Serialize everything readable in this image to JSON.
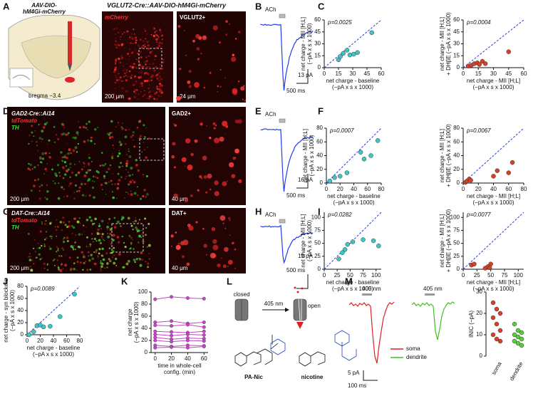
{
  "panels": {
    "A": {
      "label": "A",
      "vector": [
        "AAV-DIO-",
        "hM4Gi-mCherry"
      ],
      "title": "VGLUT2-Cre::AAV-DIO-hM4Gi-mCherry",
      "stain": "mCherry",
      "inset": "VGLUT2+",
      "bregma": "bregma −3.4",
      "scale1": "200 μm",
      "scale2": "24 μm"
    },
    "B": {
      "label": "B",
      "drug": "ACh",
      "scale_y": "13 pA",
      "scale_x": "500 ms"
    },
    "C": {
      "label": "C"
    },
    "D": {
      "label": "D",
      "title": "GAD2-Cre::Ai14",
      "stain1": "tdTomato",
      "stain2": "TH",
      "inset": "GAD2+",
      "scale1": "200 μm",
      "scale2": "40 μm"
    },
    "E": {
      "label": "E",
      "drug": "ACh",
      "scale_y": "16 pA",
      "scale_x": "500 ms"
    },
    "F": {
      "label": "F"
    },
    "G": {
      "label": "G",
      "title": "DAT-Cre::Ai14",
      "stain1": "tdTomato",
      "stain2": "TH",
      "inset": "DAT+",
      "scale1": "200 μm",
      "scale2": "40 μm"
    },
    "H": {
      "label": "H",
      "drug": "ACh",
      "scale_y": "19 pA",
      "scale_x": "500 ms"
    },
    "I": {
      "label": "I"
    },
    "J": {
      "label": "J"
    },
    "K": {
      "label": "K"
    },
    "L": {
      "label": "L",
      "closed": "closed",
      "light": "405 nm",
      "open": "open",
      "caged": "PA-Nic",
      "product": "nicotine"
    },
    "M": {
      "label": "M",
      "light1": "405 nm",
      "light2": "405 nm",
      "legend": [
        "soma",
        "dendrite"
      ],
      "scale_y": "5 pA",
      "scale_x": "100 ms"
    }
  },
  "chart_data": [
    {
      "type": "scatter",
      "x": [
        15,
        17,
        20,
        24,
        27,
        31,
        35,
        50
      ],
      "values": [
        10,
        14,
        18,
        22,
        16,
        17,
        19,
        44
      ],
      "color": "#3ec6c6",
      "xlim": [
        0,
        60
      ],
      "ylim": [
        0,
        60
      ],
      "xticks": [
        0,
        15,
        30,
        45,
        60
      ],
      "yticks": [
        0,
        15,
        30,
        45,
        60
      ],
      "xlabel": [
        "net charge - baseline",
        "(−pA x s x 1000)"
      ],
      "ylabel": [
        "net charge - MII [H;L]",
        "(−pA x s x 1000)"
      ],
      "annotation": "p=0.0025",
      "diagonal": true
    },
    {
      "type": "scatter",
      "x": [
        5,
        8,
        11,
        14,
        16,
        19,
        22,
        45
      ],
      "values": [
        2,
        3,
        5,
        6,
        4,
        8,
        5,
        20
      ],
      "color": "#d63f2a",
      "xlim": [
        0,
        60
      ],
      "ylim": [
        0,
        60
      ],
      "xticks": [
        0,
        15,
        30,
        45,
        60
      ],
      "yticks": [
        0,
        15,
        30,
        45,
        60
      ],
      "xlabel": [
        "net charge - MII [H;L]",
        "(−pA x s x 1000)"
      ],
      "ylabel": [
        "net charge - MII [H;L]",
        "+ DHβE (−pA x s x 1000)"
      ],
      "annotation": "p=0.0004",
      "diagonal": true
    },
    {
      "type": "scatter",
      "x": [
        5,
        12,
        20,
        30,
        50,
        55,
        65,
        75
      ],
      "values": [
        3,
        8,
        10,
        15,
        45,
        35,
        40,
        62
      ],
      "color": "#3ec6c6",
      "xlim": [
        0,
        80
      ],
      "ylim": [
        0,
        80
      ],
      "xticks": [
        0,
        20,
        40,
        60,
        80
      ],
      "yticks": [
        0,
        20,
        40,
        60,
        80
      ],
      "xlabel": [
        "net charge - baseline",
        "(−pA x s x 1000)"
      ],
      "ylabel": [
        "net charge - MII [H;L]",
        "(−pA x s x 1000)"
      ],
      "annotation": "p=0.0007",
      "diagonal": true
    },
    {
      "type": "scatter",
      "x": [
        3,
        5,
        8,
        10,
        40,
        45,
        60,
        65
      ],
      "values": [
        1,
        3,
        6,
        4,
        10,
        18,
        15,
        30
      ],
      "color": "#d63f2a",
      "xlim": [
        0,
        80
      ],
      "ylim": [
        0,
        80
      ],
      "xticks": [
        0,
        20,
        40,
        60,
        80
      ],
      "yticks": [
        0,
        20,
        40,
        60,
        80
      ],
      "xlabel": [
        "net charge - MII [H;L]",
        "(−pA x s x 1000)"
      ],
      "ylabel": [
        "net charge - MII [H;L]",
        "+ DHβE (−pA x s x 1000)"
      ],
      "annotation": "p=0.0067",
      "diagonal": true
    },
    {
      "type": "scatter",
      "x": [
        28,
        35,
        40,
        45,
        55,
        75,
        95,
        105
      ],
      "values": [
        20,
        32,
        38,
        48,
        53,
        57,
        55,
        45
      ],
      "color": "#3ec6c6",
      "xlim": [
        0,
        110
      ],
      "ylim": [
        0,
        110
      ],
      "xticks": [
        0,
        25,
        50,
        75,
        100
      ],
      "yticks": [
        0,
        25,
        50,
        75,
        100
      ],
      "xlabel": [
        "net charge - baseline",
        "(−pA x s x 1000)"
      ],
      "ylabel": [
        "net charge - MII [H;L]",
        "(−pA x s x 1000)"
      ],
      "annotation": "p=0.0282",
      "diagonal": true
    },
    {
      "type": "scatter",
      "x": [
        15,
        20,
        40,
        45,
        48,
        50
      ],
      "values": [
        8,
        10,
        2,
        5,
        3,
        10
      ],
      "color": "#d63f2a",
      "xlim": [
        0,
        110
      ],
      "ylim": [
        0,
        110
      ],
      "xticks": [
        0,
        25,
        50,
        75,
        100
      ],
      "yticks": [
        0,
        25,
        50,
        75,
        100
      ],
      "xlabel": [
        "net charge - MII [H;L]",
        "(−pA x s x 1000)"
      ],
      "ylabel": [
        "net charge - MII [H;L]",
        "+ DHβE (−pA x s x 1000)"
      ],
      "annotation": "p=0.0077",
      "diagonal": true
    },
    {
      "type": "scatter",
      "x": [
        3,
        10,
        15,
        20,
        25,
        35,
        50,
        72
      ],
      "values": [
        0,
        5,
        15,
        16,
        13,
        14,
        30,
        67
      ],
      "color": "#3ec6c6",
      "xlim": [
        0,
        80
      ],
      "ylim": [
        0,
        80
      ],
      "xticks": [
        0,
        20,
        40,
        60,
        80
      ],
      "yticks": [
        0,
        20,
        40,
        60,
        80
      ],
      "xlabel": [
        "net charge - baseline",
        "(−pA x s x 1000)"
      ],
      "ylabel": [
        "net charge - syn blockers",
        "(−pA x s x 1000)"
      ],
      "annotation": "p=0.0089",
      "diagonal": true
    },
    {
      "type": "line",
      "x": [
        0,
        20,
        40,
        60
      ],
      "color": "#c444c4",
      "series": [
        {
          "values": [
            88,
            92,
            90,
            89
          ]
        },
        {
          "values": [
            50,
            52,
            48,
            50
          ]
        },
        {
          "values": [
            45,
            44,
            46,
            42
          ]
        },
        {
          "values": [
            35,
            34,
            33,
            35
          ]
        },
        {
          "values": [
            30,
            28,
            30,
            29
          ]
        },
        {
          "values": [
            25,
            22,
            24,
            23
          ]
        },
        {
          "values": [
            20,
            18,
            20,
            19
          ]
        },
        {
          "values": [
            12,
            10,
            12,
            11
          ]
        },
        {
          "values": [
            8,
            9,
            8,
            10
          ]
        }
      ],
      "xlim": [
        -5,
        65
      ],
      "ylim": [
        0,
        100
      ],
      "xticks": [
        0,
        20,
        40,
        60
      ],
      "yticks": [
        0,
        20,
        40,
        60,
        80,
        100
      ],
      "xlabel": [
        "time in whole-cell",
        "config. (min)"
      ],
      "ylabel": [
        "net charge",
        "(−pA x s x 1000)"
      ]
    },
    {
      "type": "strip",
      "categories": [
        "soma",
        "dendrite"
      ],
      "series": [
        {
          "color": "#d63f2a",
          "values": [
            25,
            22,
            20,
            18,
            15,
            12,
            10,
            8,
            7
          ]
        },
        {
          "color": "#5ccc3a",
          "values": [
            15,
            12,
            11,
            10,
            9,
            8,
            7,
            6,
            5
          ]
        }
      ],
      "ylim": [
        0,
        30
      ],
      "yticks": [
        0,
        10,
        20,
        30
      ],
      "ylabel": [
        "INIC (−pA)"
      ]
    }
  ]
}
